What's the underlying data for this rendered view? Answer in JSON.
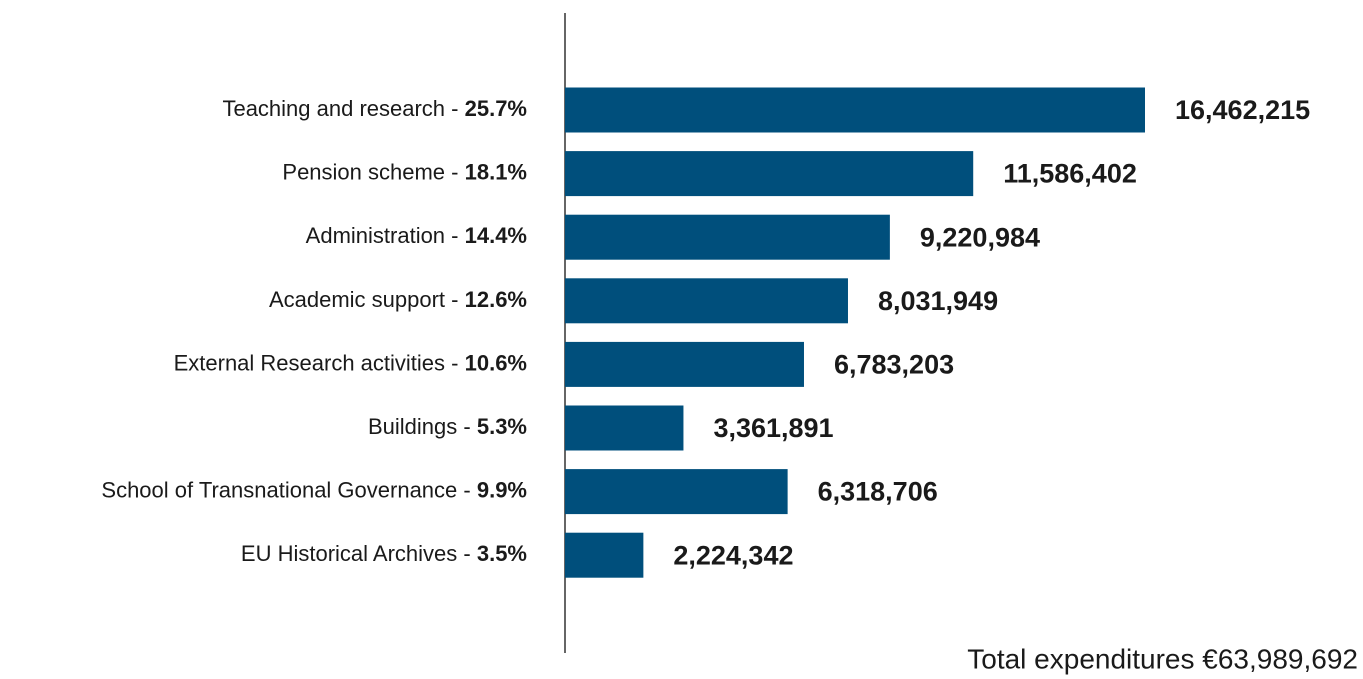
{
  "chart_data": {
    "type": "hbar",
    "categories": [
      "Teaching and research",
      "Pension scheme",
      "Administration",
      "Academic support",
      "External Research activities",
      "Buildings",
      "School of Transnational Governance",
      "EU Historical Archives"
    ],
    "separator": " - ",
    "share_labels": [
      "25.7%",
      "18.1%",
      "14.4%",
      "12.6%",
      "10.6%",
      "5.3%",
      "9.9%",
      "3.5%"
    ],
    "values": [
      16462215,
      11586402,
      9220984,
      8031949,
      6783203,
      3361891,
      6318706,
      2224342
    ],
    "value_labels": [
      "16,462,215",
      "11,586,402",
      "9,220,984",
      "8,031,949",
      "6,783,203",
      "3,361,891",
      "6,318,706",
      "2,224,342"
    ],
    "color": "#004f7c",
    "note": "Total expenditures €63,989,692"
  }
}
